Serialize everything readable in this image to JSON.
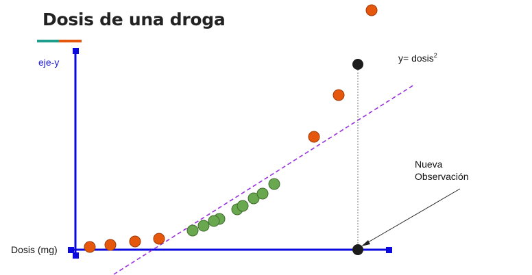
{
  "title": "Dosis de una droga",
  "labels": {
    "y_axis": "eje-y",
    "x_axis": "Dosis (mg)",
    "formula_prefix": "y= dosis",
    "formula_exponent": "2",
    "new_observation_line1": "Nueva",
    "new_observation_line2": "Observación"
  },
  "colors": {
    "axis": "#0a0adf",
    "orange": "#e5570c",
    "green": "#6aa84f",
    "black": "#1c1c1c",
    "trend_line": "#9b2fe0",
    "accent_teal": "#1e9c8c",
    "accent_orange": "#e5570c"
  }
}
